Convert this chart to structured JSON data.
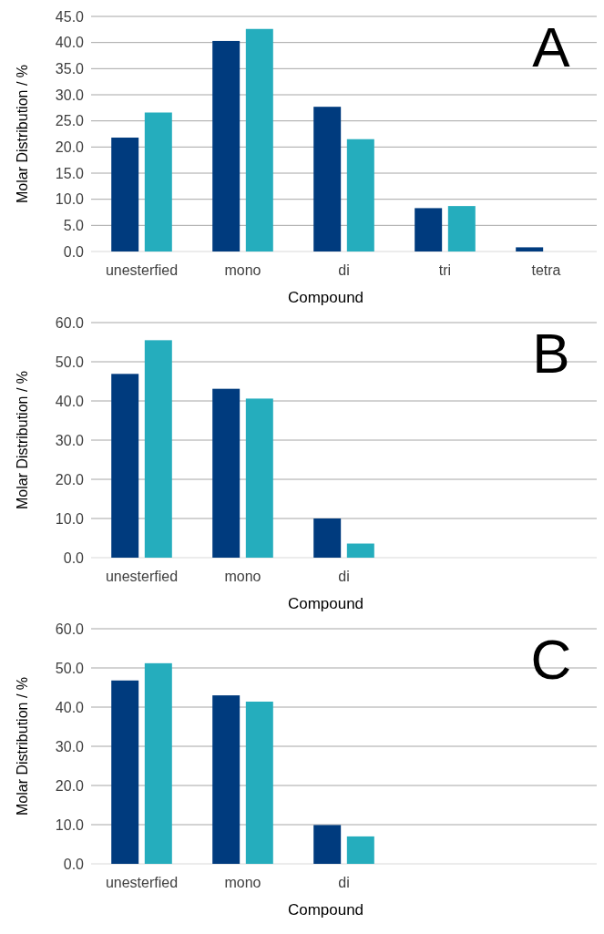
{
  "chart_data": [
    {
      "type": "bar",
      "xlabel": "Compound",
      "ylabel": "Molar Distribution / %",
      "annotations": [
        "A"
      ],
      "categories": [
        "unesterfied",
        "mono",
        "di",
        "tri",
        "tetra"
      ],
      "series": [
        {
          "color": "#003b7e",
          "values": [
            21.8,
            40.3,
            27.7,
            8.3,
            0.8
          ]
        },
        {
          "color": "#25adbd",
          "values": [
            26.6,
            42.6,
            21.5,
            8.7,
            null
          ]
        }
      ],
      "ylim": [
        0,
        45
      ],
      "yticks": [
        {
          "value": 0,
          "label": "0.0"
        },
        {
          "value": 5,
          "label": "5.0"
        },
        {
          "value": 10,
          "label": "10.0"
        },
        {
          "value": 15,
          "label": "15.0"
        },
        {
          "value": 20,
          "label": "20.0"
        },
        {
          "value": 25,
          "label": "25.0"
        },
        {
          "value": 30,
          "label": "30.0"
        },
        {
          "value": 35,
          "label": "35.0"
        },
        {
          "value": 40,
          "label": "40.0"
        },
        {
          "value": 45,
          "label": "45.0"
        }
      ],
      "grid": "y"
    },
    {
      "type": "bar",
      "xlabel": "Compound",
      "ylabel": "Molar Distribution / %",
      "annotations": [
        "B"
      ],
      "categories": [
        "unesterfied",
        "mono",
        "di",
        null,
        null
      ],
      "series": [
        {
          "color": "#003b7e",
          "values": [
            46.9,
            43.1,
            10.0,
            null,
            null
          ]
        },
        {
          "color": "#25adbd",
          "values": [
            55.5,
            40.6,
            3.6,
            null,
            null
          ]
        }
      ],
      "ylim": [
        0,
        60
      ],
      "yticks": [
        {
          "value": 0,
          "label": "0.0"
        },
        {
          "value": 10,
          "label": "10.0"
        },
        {
          "value": 20,
          "label": "20.0"
        },
        {
          "value": 30,
          "label": "30.0"
        },
        {
          "value": 40,
          "label": "40.0"
        },
        {
          "value": 50,
          "label": "50.0"
        },
        {
          "value": 60,
          "label": "60.0"
        }
      ],
      "grid": "y"
    },
    {
      "type": "bar",
      "xlabel": "Compound",
      "ylabel": "Molar Distribution / %",
      "annotations": [
        "C"
      ],
      "categories": [
        "unesterfied",
        "mono",
        "di",
        null,
        null
      ],
      "series": [
        {
          "color": "#003b7e",
          "values": [
            46.8,
            43.0,
            9.9,
            null,
            null
          ]
        },
        {
          "color": "#25adbd",
          "values": [
            51.2,
            41.4,
            7.0,
            null,
            null
          ]
        }
      ],
      "ylim": [
        0,
        60
      ],
      "yticks": [
        {
          "value": 0,
          "label": "0.0"
        },
        {
          "value": 10,
          "label": "10.0"
        },
        {
          "value": 20,
          "label": "20.0"
        },
        {
          "value": 30,
          "label": "30.0"
        },
        {
          "value": 40,
          "label": "40.0"
        },
        {
          "value": 50,
          "label": "50.0"
        },
        {
          "value": 60,
          "label": "60.0"
        }
      ],
      "grid": "y"
    }
  ]
}
